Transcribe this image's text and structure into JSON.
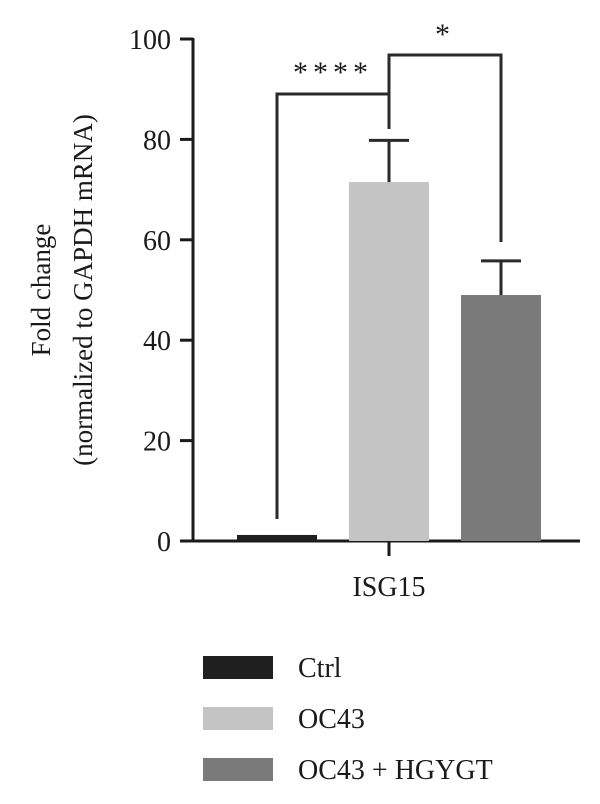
{
  "chart_data": {
    "type": "bar",
    "title": "",
    "xlabel": "",
    "ylabel_lines": [
      "Fold change",
      "(normalized to GAPDH mRNA)"
    ],
    "categories": [
      "ISG15"
    ],
    "ylim": [
      0,
      100
    ],
    "yticks": [
      0,
      20,
      40,
      60,
      80,
      100
    ],
    "ytick_labels": [
      "0",
      "20",
      "40",
      "60",
      "80",
      "100"
    ],
    "grid": false,
    "legend_position": "bottom",
    "series": [
      {
        "name": "Ctrl",
        "values": [
          1.2
        ],
        "error": [
          0
        ],
        "color": "#1f1f1f"
      },
      {
        "name": "OC43",
        "values": [
          71.5
        ],
        "error": [
          8.3
        ],
        "color": "#c4c4c4"
      },
      {
        "name": "OC43 + HGYGT",
        "values": [
          49
        ],
        "error": [
          6.8
        ],
        "color": "#7a7a7a"
      }
    ],
    "significance": [
      {
        "from": "Ctrl",
        "to": "OC43",
        "label": "****"
      },
      {
        "from": "OC43",
        "to": "OC43 + HGYGT",
        "label": "*"
      }
    ]
  }
}
